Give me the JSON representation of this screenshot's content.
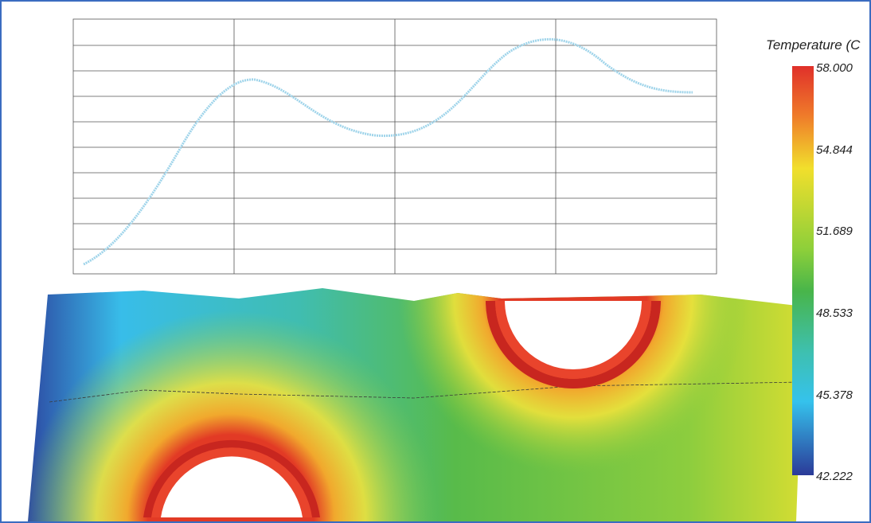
{
  "legend": {
    "title": "Temperature (C",
    "labels": [
      "58.000",
      "54.844",
      "51.689",
      "48.533",
      "45.378",
      "42.222"
    ]
  }
}
